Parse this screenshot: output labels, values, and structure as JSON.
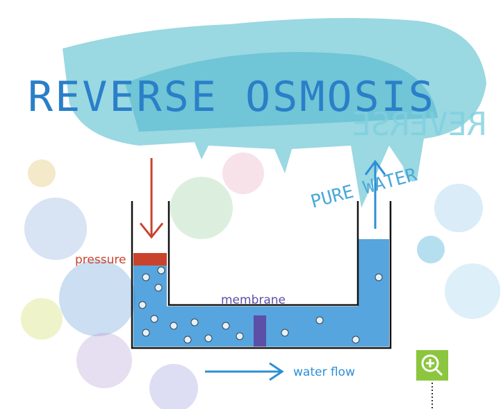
{
  "title": "REVERSE OSMOSIS",
  "mirrored_title": "REVERSE",
  "labels": {
    "pure_water": "PURE WATER",
    "pressure": "pressure",
    "membrane": "membrane",
    "water_flow": "water flow"
  }
}
